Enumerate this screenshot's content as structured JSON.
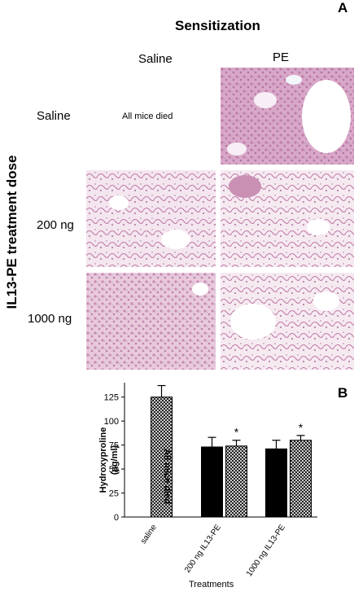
{
  "panel_a": {
    "letter": "A",
    "title": "Sensitization",
    "col_headers": [
      "Saline",
      "PE"
    ],
    "row_axis_label": "IL13-PE treatment dose",
    "row_labels": [
      "Saline",
      "200 ng",
      "1000 ng"
    ],
    "empty_cell_note": "All mice died"
  },
  "panel_b": {
    "letter": "B",
    "note": "All mice died"
  },
  "chart_data": {
    "type": "bar",
    "ylabel": "Hydroxyproline (µg/ml)",
    "ylabel_line1": "Hydroxyproline",
    "ylabel_line2": "(µg/ml)",
    "xlabel": "Treatments",
    "ylim": [
      0,
      140
    ],
    "yticks": [
      "0",
      "25",
      "50",
      "75",
      "100",
      "125"
    ],
    "categories": [
      "saline",
      "200 ng IL13-PE",
      "1000 ng IL13-PE"
    ],
    "series": [
      {
        "values": [
          null,
          73,
          71
        ],
        "errors": [
          null,
          10,
          9
        ],
        "fill": "solid",
        "color": "#000000"
      },
      {
        "values": [
          125,
          74,
          80
        ],
        "errors": [
          12,
          6,
          5
        ],
        "fill": "crosshatch",
        "color": "#000000"
      }
    ],
    "annotations": [
      "*",
      "*"
    ],
    "annotation_positions": [
      [
        1,
        1
      ],
      [
        2,
        1
      ]
    ]
  }
}
